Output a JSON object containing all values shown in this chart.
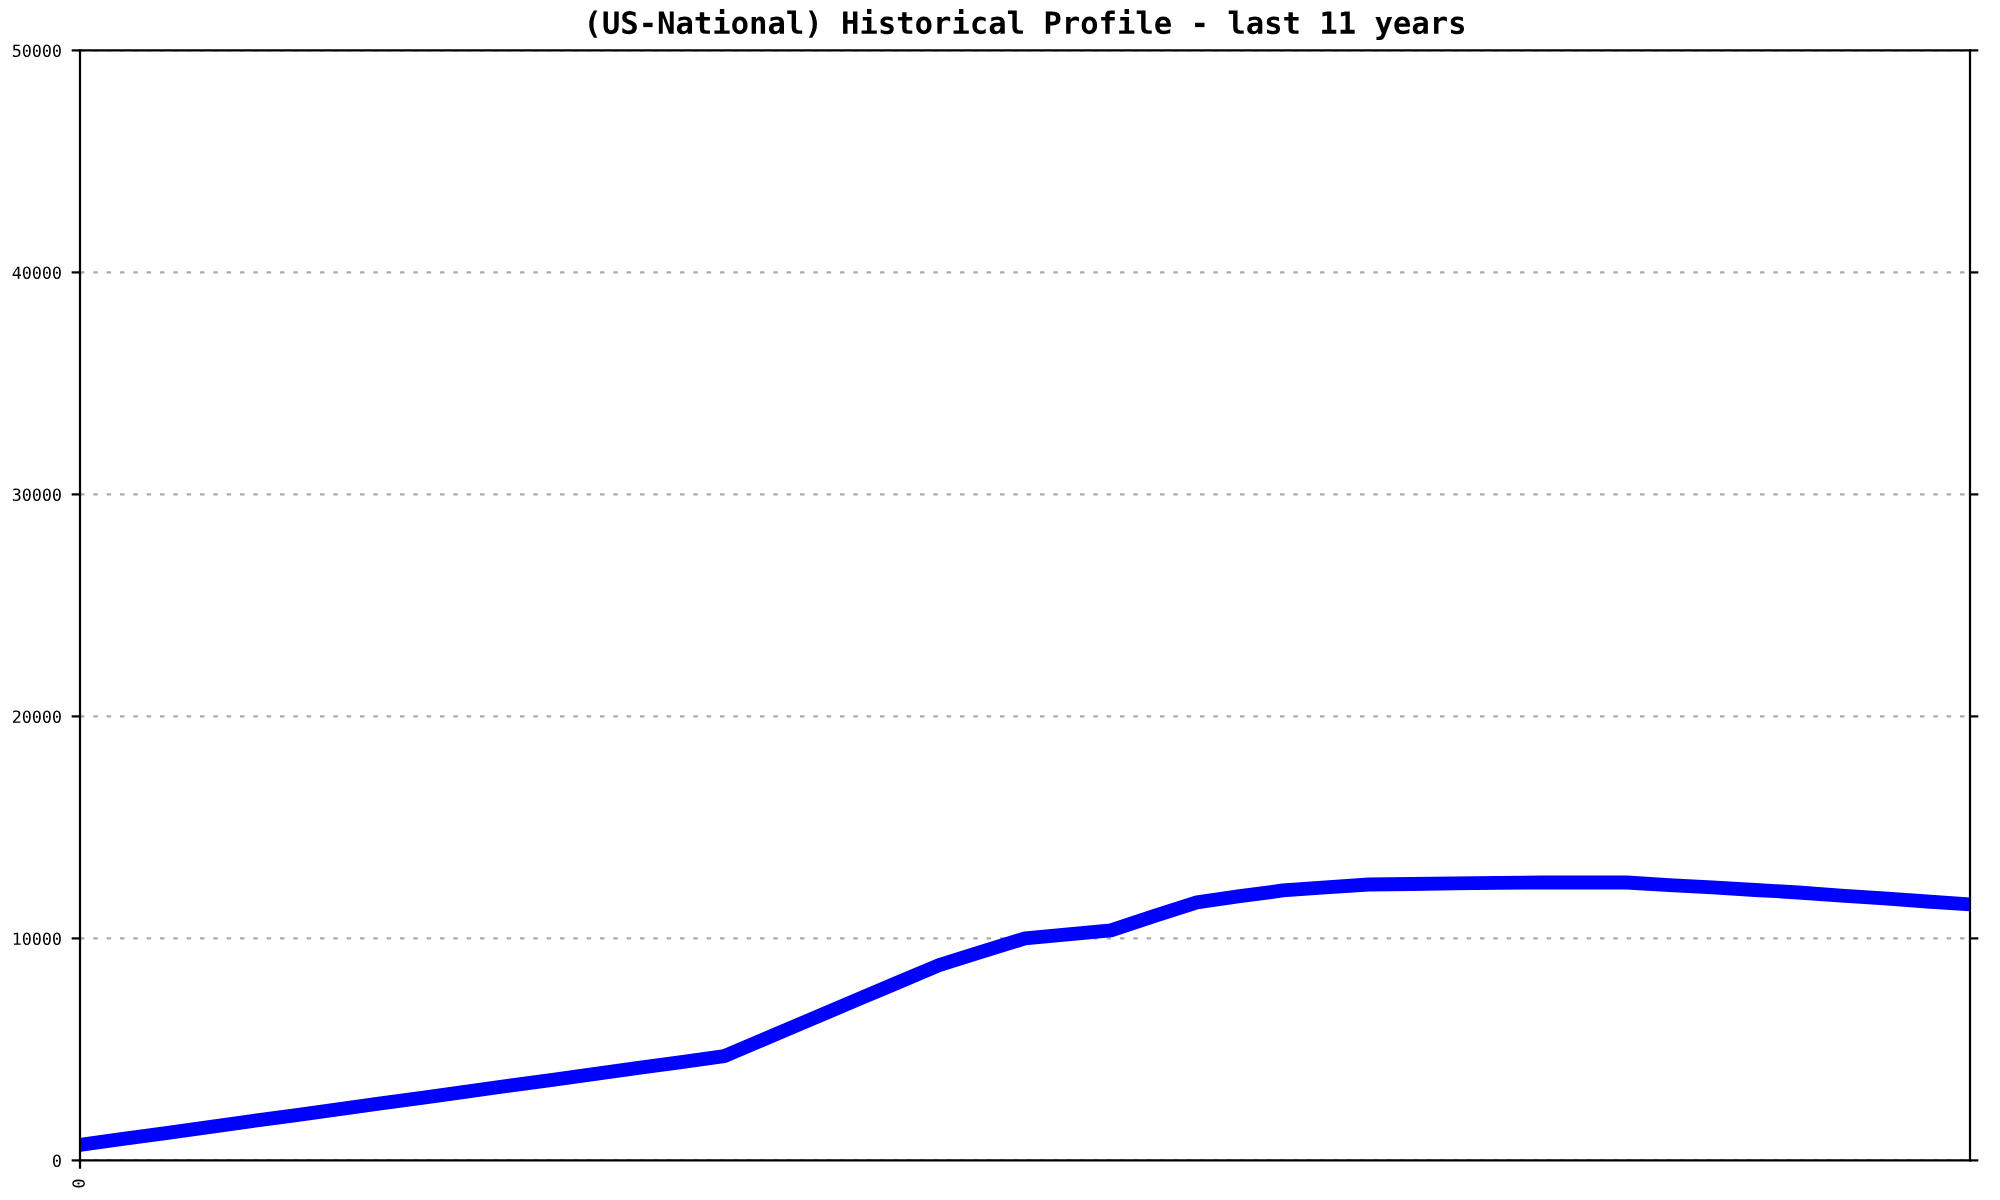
{
  "chart_data": {
    "type": "line",
    "title": "(US-National) Historical Profile - last 11 years",
    "categories": [
      "0",
      null,
      null,
      null,
      null,
      null,
      null,
      null,
      null,
      null,
      null,
      null,
      null,
      null,
      null,
      null,
      null,
      null,
      null,
      null,
      null,
      null,
      null,
      null,
      null,
      null,
      null,
      null,
      null,
      null,
      null,
      null,
      null,
      null,
      null,
      null,
      null,
      null,
      null,
      null,
      null,
      null,
      null,
      null,
      null
    ],
    "series": [
      {
        "color": "#0000ff",
        "values": [
          700,
          970,
          1230,
          1500,
          1770,
          2030,
          2300,
          2570,
          2830,
          3100,
          3370,
          3630,
          3900,
          4170,
          4430,
          4700,
          5520,
          6340,
          7160,
          7980,
          8800,
          9400,
          10000,
          10180,
          10360,
          11000,
          11620,
          11900,
          12160,
          12300,
          12430,
          12450,
          12480,
          12500,
          12520,
          12520,
          12520,
          12400,
          12300,
          12180,
          12070,
          11930,
          11800,
          11660,
          11530
        ]
      }
    ],
    "ylim": [
      0,
      50000
    ],
    "yticks": [
      0,
      10000,
      20000,
      30000,
      40000,
      50000
    ],
    "grid": "y",
    "marker": "none",
    "line_style": "solid"
  }
}
